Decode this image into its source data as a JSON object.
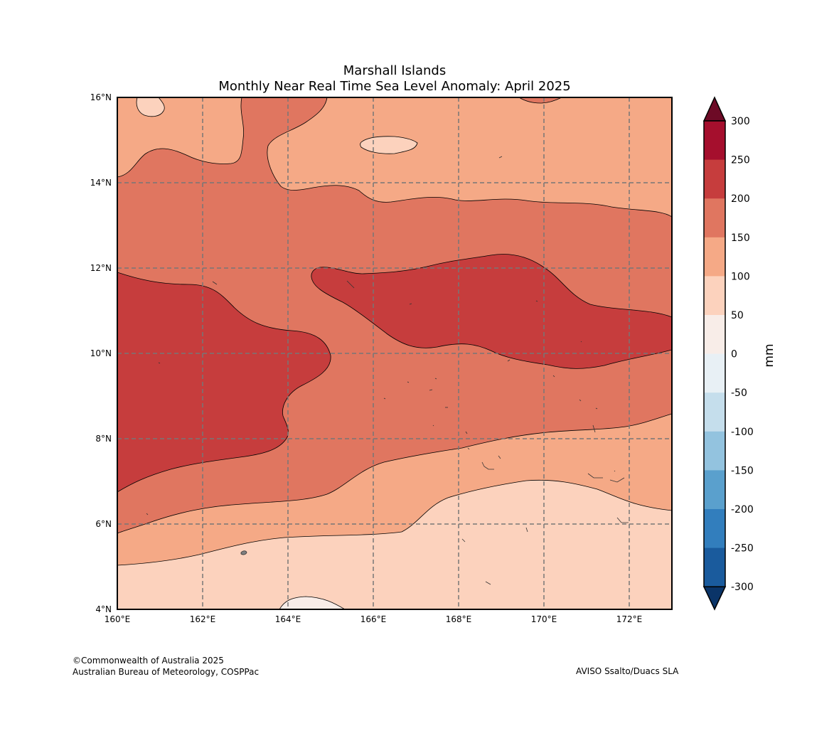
{
  "title": {
    "line1": "Marshall Islands",
    "line2": "Monthly Near Real Time Sea Level Anomaly: April 2025"
  },
  "map": {
    "lon_range": [
      160,
      173
    ],
    "lat_range": [
      4,
      16
    ],
    "x_ticks": [
      "160°E",
      "162°E",
      "164°E",
      "166°E",
      "168°E",
      "170°E",
      "172°E"
    ],
    "y_ticks": [
      "4°N",
      "6°N",
      "8°N",
      "10°N",
      "12°N",
      "14°N",
      "16°N"
    ],
    "gridlines": true
  },
  "chart_data": {
    "type": "contour-map",
    "region": "Marshall Islands",
    "variable": "Monthly Near Real Time Sea Level Anomaly",
    "period": "April 2025",
    "units": "mm",
    "contour_levels_mm": [
      -300,
      -250,
      -200,
      -150,
      -100,
      -50,
      0,
      50,
      100,
      150,
      200,
      250,
      300
    ],
    "regions": [
      {
        "anomaly_mm": "0 to 50",
        "location": "patch near 164.4°E, 4°N"
      },
      {
        "anomaly_mm": "50 to 100",
        "location": "south of ~5.5°N and southeast area 167–173°E, 4–7°N"
      },
      {
        "anomaly_mm": "100 to 150",
        "location": "band ~5–7°N and north of ~13.5°N"
      },
      {
        "anomaly_mm": "150 to 200",
        "location": "broad band ~6–14°N"
      },
      {
        "anomaly_mm": "200 to 250",
        "location": "western lobe 160–165°E, 6.8–11.9°N and central band 165.5–173°E, 9.8–12.3°N"
      }
    ]
  },
  "colorbar": {
    "label": "mm",
    "ticks": [
      "300",
      "250",
      "200",
      "150",
      "100",
      "50",
      "0",
      "-50",
      "-100",
      "-150",
      "-200",
      "-250",
      "-300"
    ],
    "colors_top_to_bottom": [
      "#a50f2d",
      "#c63d3d",
      "#e07660",
      "#f5a986",
      "#fcd2bd",
      "#f8ede8",
      "#e8f0f5",
      "#c5deec",
      "#93c3df",
      "#5aa0cd",
      "#327ebd",
      "#1a5b9d"
    ],
    "over_color": "#6d0a26",
    "under_color": "#0a3468"
  },
  "colors": {
    "c0_50": "#f8ede8",
    "c50_100": "#fcd2bd",
    "c100_150": "#f5a986",
    "c150_200": "#e07660",
    "c200_250": "#c63d3d",
    "land": "#808080",
    "grid": "#777777"
  },
  "credits": {
    "left_line1": "©Commonwealth of Australia 2025",
    "left_line2": "Australian Bureau of Meteorology, COSPPac",
    "right": "AVISO Ssalto/Duacs SLA"
  }
}
